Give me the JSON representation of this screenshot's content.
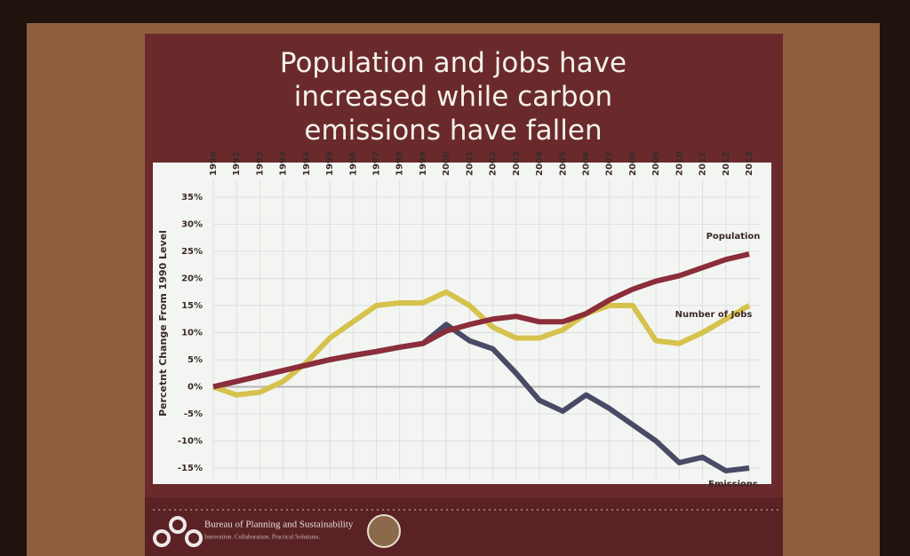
{
  "chart_data": {
    "type": "line",
    "title": "Population and jobs have increased while carbon emissions have fallen",
    "y_label": "Percetnt Change From 1990 Level",
    "categories": [
      "1990",
      "1991",
      "1992",
      "1993",
      "1994",
      "1995",
      "1996",
      "1997",
      "1998",
      "1999",
      "2000",
      "2001",
      "2002",
      "2003",
      "2004",
      "2005",
      "2006",
      "2007",
      "2008",
      "2009",
      "2010",
      "2011",
      "2012",
      "2013"
    ],
    "series": [
      {
        "name": "Emissions",
        "color": "#4b4a66",
        "values": [
          0,
          1,
          2,
          3,
          4,
          5,
          5.8,
          6.5,
          7.3,
          8,
          11.5,
          8.5,
          7,
          2.5,
          -2.5,
          -4.5,
          -1.5,
          -4,
          -7,
          -10,
          -14,
          -13,
          -15.5,
          -15
        ]
      },
      {
        "name": "Number of Jobs",
        "color": "#d6c24c",
        "values": [
          0,
          -1.5,
          -1,
          1,
          4.5,
          9,
          12,
          15,
          15.5,
          15.5,
          17.5,
          15,
          11,
          9,
          9,
          10.5,
          13.5,
          15,
          15,
          8.5,
          8,
          10,
          12.5,
          15
        ]
      },
      {
        "name": "Population",
        "color": "#8b2d3a",
        "values": [
          0,
          1,
          2,
          3,
          4,
          5,
          5.8,
          6.5,
          7.3,
          8,
          10.3,
          11.5,
          12.5,
          13,
          12,
          12,
          13.5,
          16,
          18,
          19.5,
          20.5,
          22,
          23.5,
          24.5
        ]
      }
    ],
    "ylim": [
      -15,
      35
    ],
    "yticks": [
      {
        "value": -15,
        "label": "-15%"
      },
      {
        "value": -10,
        "label": "-10%"
      },
      {
        "value": -5,
        "label": "-5%"
      },
      {
        "value": 0,
        "label": "0%"
      },
      {
        "value": 5,
        "label": "5%"
      },
      {
        "value": 10,
        "label": "10%"
      },
      {
        "value": 15,
        "label": "15%"
      },
      {
        "value": 20,
        "label": "20%"
      },
      {
        "value": 25,
        "label": "25%"
      },
      {
        "value": 30,
        "label": "30%"
      },
      {
        "value": 35,
        "label": "35%"
      }
    ],
    "grid": true
  },
  "footer": {
    "organization": "Bureau of Planning and Sustainability",
    "tagline": "Innovation. Collaboration. Practical Solutions."
  }
}
